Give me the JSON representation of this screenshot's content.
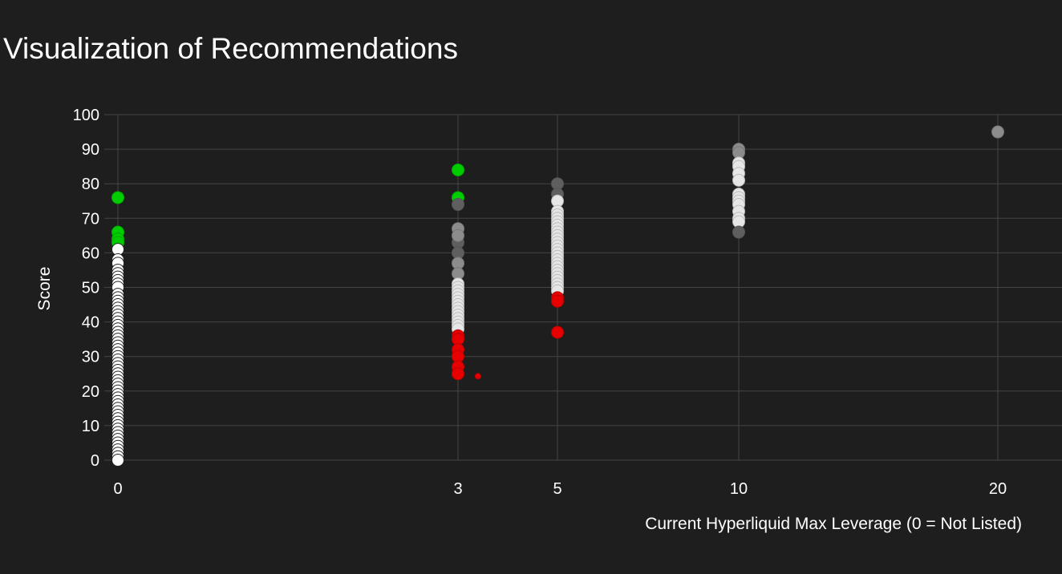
{
  "chart_data": {
    "type": "scatter",
    "title": "Visualization of Recommendations",
    "xlabel": "Current Hyperliquid Max Leverage (0 = Not Listed)",
    "ylabel": "Score",
    "x_ticks": [
      0,
      3,
      5,
      10,
      20
    ],
    "y_ticks": [
      0,
      10,
      20,
      30,
      40,
      50,
      60,
      70,
      80,
      90,
      100
    ],
    "ylim": [
      0,
      100
    ],
    "x_scale": "categorical-style nonlinear (0, 3, 5, 10, 20)",
    "grid": true,
    "legend": "none",
    "colors": {
      "background": "#1e1e1e",
      "grid": "#444444",
      "green": "#00cc00",
      "red": "#e60000",
      "gray_dark": "#5f5f5f",
      "gray_mid": "#8c8c8c",
      "light": "#e6e6e6",
      "white": "#ffffff"
    },
    "groups": [
      {
        "x": 0,
        "color": "green",
        "y": [
          76,
          66,
          64,
          63
        ]
      },
      {
        "x": 0,
        "color": "white",
        "y": [
          61,
          58,
          57,
          55,
          54,
          53,
          52,
          51,
          50,
          48,
          47,
          46,
          45,
          44,
          43,
          42,
          41,
          40,
          39,
          38,
          37,
          36,
          35,
          34,
          33,
          32,
          31,
          30,
          29,
          28,
          27,
          26,
          25,
          24,
          23,
          22,
          21,
          20,
          19,
          18,
          17,
          16,
          15,
          14,
          13,
          12,
          11,
          10,
          9,
          8,
          7,
          6,
          5,
          4,
          3,
          2,
          1,
          0
        ]
      },
      {
        "x": 3,
        "color": "green",
        "y": [
          84,
          76
        ]
      },
      {
        "x": 3,
        "color": "gray_dark",
        "y": [
          74,
          63,
          60
        ]
      },
      {
        "x": 3,
        "color": "gray_mid",
        "y": [
          67,
          65,
          57,
          54
        ]
      },
      {
        "x": 3,
        "color": "light",
        "y": [
          51,
          50,
          49,
          48,
          47,
          46,
          45,
          44,
          43,
          42,
          41,
          40,
          39,
          38
        ]
      },
      {
        "x": 3,
        "color": "red",
        "y": [
          36,
          35,
          32,
          30,
          27,
          25
        ]
      },
      {
        "x": 3.4,
        "color": "red",
        "y": [
          24.3
        ],
        "size": "small"
      },
      {
        "x": 5,
        "color": "gray_dark",
        "y": [
          80,
          77
        ]
      },
      {
        "x": 5,
        "color": "light",
        "y": [
          75,
          72,
          71,
          70,
          69,
          68,
          67,
          66,
          65,
          64,
          63,
          62,
          61,
          60,
          59,
          58,
          57,
          56,
          55,
          54,
          53,
          52,
          51,
          50,
          49
        ]
      },
      {
        "x": 5,
        "color": "red",
        "y": [
          47,
          46,
          37
        ]
      },
      {
        "x": 10,
        "color": "gray_mid",
        "y": [
          90,
          89
        ]
      },
      {
        "x": 10,
        "color": "light",
        "y": [
          86,
          85,
          83,
          81,
          77,
          76,
          75,
          74,
          72,
          70,
          69
        ]
      },
      {
        "x": 10,
        "color": "gray_dark",
        "y": [
          66
        ]
      },
      {
        "x": 20,
        "color": "gray_mid",
        "y": [
          95
        ]
      }
    ]
  }
}
